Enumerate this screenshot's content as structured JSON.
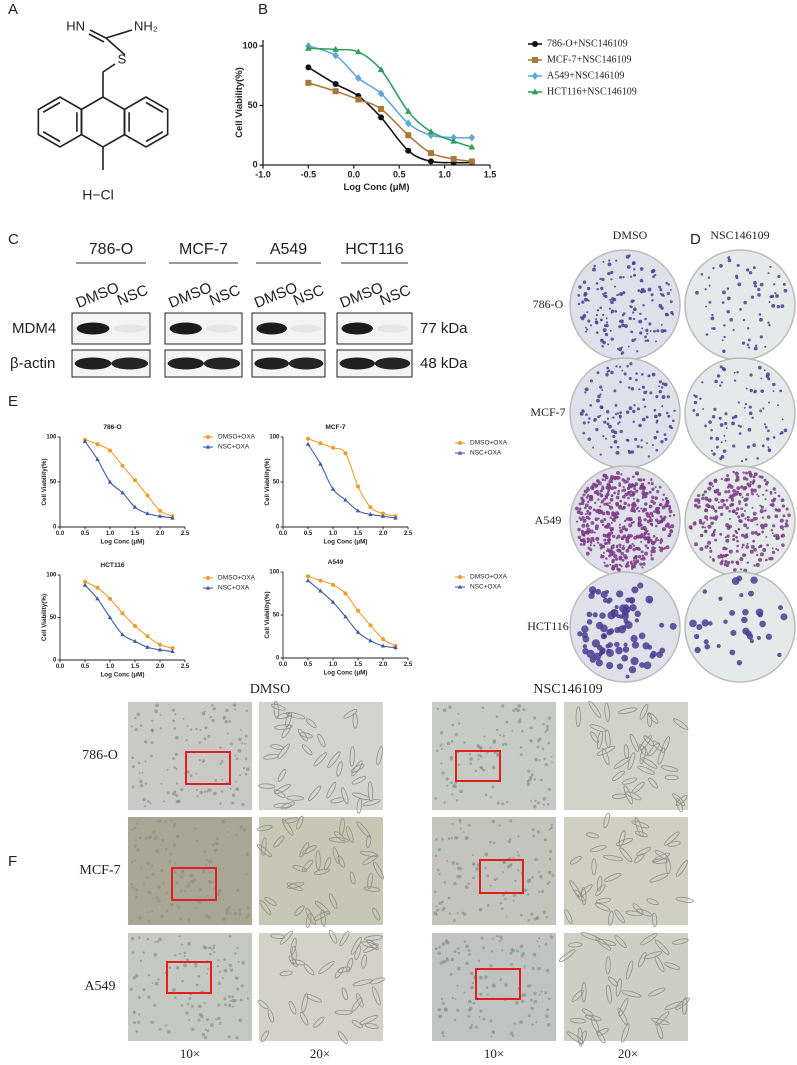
{
  "panel_labels": [
    "A",
    "B",
    "C",
    "D",
    "E",
    "F"
  ],
  "structure": {
    "labels": [
      "HN",
      "NH₂",
      "S",
      "H−Cl"
    ]
  },
  "blot": {
    "cell_lines": [
      "786-O",
      "MCF-7",
      "A549",
      "HCT116"
    ],
    "lanes": [
      "DMSO",
      "NSC"
    ],
    "rows": [
      {
        "name": "MDM4",
        "size": "77 kDa"
      },
      {
        "name": "β-actin",
        "size": "48 kDa"
      }
    ]
  },
  "colony": {
    "columns": [
      "DMSO",
      "NSC146109"
    ],
    "rows": [
      "786-O",
      "MCF-7",
      "A549",
      "HCT116"
    ]
  },
  "microscopy": {
    "groups": [
      "DMSO",
      "NSC146109"
    ],
    "rows": [
      "786-O",
      "MCF-7",
      "A549"
    ],
    "magnifications": [
      "10×",
      "20×"
    ]
  },
  "chart_data": [
    {
      "type": "line",
      "xlabel": "Log Conc (μM)",
      "ylabel": "Cell Viability(%)",
      "x": [
        -0.5,
        -0.2,
        0.05,
        0.3,
        0.6,
        0.85,
        1.1,
        1.3
      ],
      "xlim": [
        -1.0,
        1.5
      ],
      "xticks": [
        {
          "value": -1.0,
          "label": "-1.0"
        },
        {
          "value": -0.5,
          "label": "-0.5"
        },
        {
          "value": 0,
          "label": "0.0"
        },
        {
          "value": 0.5,
          "label": "0.5"
        },
        {
          "value": 1.0,
          "label": "1.0"
        },
        {
          "value": 1.5,
          "label": "1.5"
        }
      ],
      "ylim": [
        0,
        105
      ],
      "yticks": [
        0,
        50,
        100
      ],
      "series": [
        {
          "name": "786-O+NSC146109",
          "color": "#111111",
          "marker": "circle",
          "values": [
            82,
            68,
            58,
            40,
            12,
            3,
            2,
            2
          ]
        },
        {
          "name": "MCF-7+NSC146109",
          "color": "#a8773a",
          "marker": "square",
          "values": [
            69,
            62,
            55,
            47,
            25,
            10,
            5,
            3
          ]
        },
        {
          "name": "A549+NSC146109",
          "color": "#5fa8d8",
          "marker": "diamond",
          "values": [
            100,
            92,
            73,
            60,
            35,
            25,
            23,
            23
          ]
        },
        {
          "name": "HCT116+NSC146109",
          "color": "#2e9e5e",
          "marker": "triangle",
          "values": [
            98,
            97,
            95,
            80,
            45,
            28,
            20,
            15
          ]
        }
      ]
    },
    {
      "type": "line",
      "title": "786-O",
      "xlabel": "Log Conc (μM)",
      "ylabel": "Cell Viability(%)",
      "x": [
        0.5,
        0.75,
        1.0,
        1.25,
        1.5,
        1.75,
        2.0,
        2.25
      ],
      "xlim": [
        0,
        2.5
      ],
      "xticks": [
        {
          "value": 0,
          "label": "0.0"
        },
        {
          "value": 0.5,
          "label": "0.5"
        },
        {
          "value": 1.0,
          "label": "1.0"
        },
        {
          "value": 1.5,
          "label": "1.5"
        },
        {
          "value": 2.0,
          "label": "2.0"
        },
        {
          "value": 2.5,
          "label": "2.5"
        }
      ],
      "ylim": [
        0,
        100
      ],
      "yticks": [
        0,
        50,
        100
      ],
      "series": [
        {
          "name": "DMSO+OXA",
          "color": "#f39a2b",
          "marker": "circle",
          "values": [
            97,
            92,
            85,
            68,
            52,
            35,
            18,
            12
          ]
        },
        {
          "name": "NSC+OXA",
          "color": "#3c5aa6",
          "marker": "triangle",
          "values": [
            95,
            75,
            50,
            38,
            22,
            15,
            12,
            10
          ]
        }
      ]
    },
    {
      "type": "line",
      "title": "MCF-7",
      "xlabel": "Log Conc (μM)",
      "ylabel": "Cell Viability(%)",
      "x": [
        0.5,
        0.75,
        1.0,
        1.25,
        1.5,
        1.75,
        2.0,
        2.25
      ],
      "xlim": [
        0,
        2.5
      ],
      "xticks": [
        {
          "value": 0,
          "label": "0.0"
        },
        {
          "value": 0.5,
          "label": "0.5"
        },
        {
          "value": 1.0,
          "label": "1.0"
        },
        {
          "value": 1.5,
          "label": "1.5"
        },
        {
          "value": 2.0,
          "label": "2.0"
        },
        {
          "value": 2.5,
          "label": "2.5"
        }
      ],
      "ylim": [
        0,
        100
      ],
      "yticks": [
        0,
        50,
        100
      ],
      "series": [
        {
          "name": "DMSO+OXA",
          "color": "#f39a2b",
          "marker": "circle",
          "values": [
            98,
            93,
            88,
            82,
            45,
            22,
            15,
            12
          ]
        },
        {
          "name": "NSC+OXA",
          "color": "#3c5aa6",
          "marker": "triangle",
          "values": [
            92,
            70,
            42,
            30,
            18,
            14,
            12,
            10
          ]
        }
      ]
    },
    {
      "type": "line",
      "title": "HCT116",
      "xlabel": "Log Conc (μM)",
      "ylabel": "Cell Viability(%)",
      "x": [
        0.5,
        0.75,
        1.0,
        1.25,
        1.5,
        1.75,
        2.0,
        2.25
      ],
      "xlim": [
        0,
        2.5
      ],
      "xticks": [
        {
          "value": 0,
          "label": "0.0"
        },
        {
          "value": 0.5,
          "label": "0.5"
        },
        {
          "value": 1.0,
          "label": "1.0"
        },
        {
          "value": 1.5,
          "label": "1.5"
        },
        {
          "value": 2.0,
          "label": "2.0"
        },
        {
          "value": 2.5,
          "label": "2.5"
        }
      ],
      "ylim": [
        0,
        100
      ],
      "yticks": [
        0,
        50,
        100
      ],
      "series": [
        {
          "name": "DMSO+OXA",
          "color": "#f39a2b",
          "marker": "circle",
          "values": [
            92,
            85,
            72,
            55,
            40,
            28,
            18,
            14
          ]
        },
        {
          "name": "NSC+OXA",
          "color": "#3c5aa6",
          "marker": "triangle",
          "values": [
            88,
            72,
            50,
            30,
            22,
            15,
            12,
            10
          ]
        }
      ]
    },
    {
      "type": "line",
      "title": "A549",
      "xlabel": "Log Conc (μM)",
      "ylabel": "Cell Viability(%)",
      "x": [
        0.5,
        0.75,
        1.0,
        1.25,
        1.5,
        1.75,
        2.0,
        2.25
      ],
      "xlim": [
        0,
        2.5
      ],
      "xticks": [
        {
          "value": 0,
          "label": "0.0"
        },
        {
          "value": 0.5,
          "label": "0.5"
        },
        {
          "value": 1.0,
          "label": "1.0"
        },
        {
          "value": 1.5,
          "label": "1.5"
        },
        {
          "value": 2.0,
          "label": "2.0"
        },
        {
          "value": 2.5,
          "label": "2.5"
        }
      ],
      "ylim": [
        0,
        100
      ],
      "yticks": [
        0,
        50,
        100
      ],
      "series": [
        {
          "name": "DMSO+OXA",
          "color": "#f39a2b",
          "marker": "circle",
          "values": [
            95,
            90,
            85,
            75,
            55,
            38,
            22,
            14
          ]
        },
        {
          "name": "NSC+OXA",
          "color": "#3c5aa6",
          "marker": "triangle",
          "values": [
            90,
            78,
            65,
            48,
            30,
            20,
            14,
            12
          ]
        }
      ]
    }
  ]
}
